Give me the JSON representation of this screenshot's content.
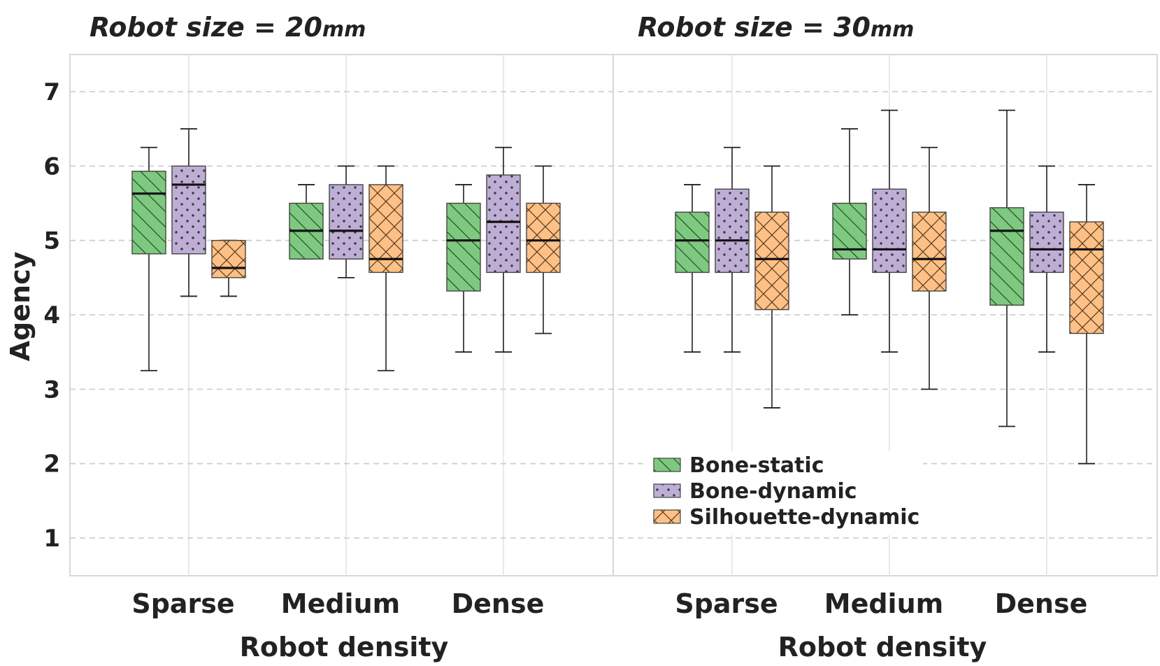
{
  "chart_data": {
    "type": "box",
    "ylabel": "Agency",
    "ylim": [
      0.5,
      7.5
    ],
    "yticks": [
      1,
      2,
      3,
      4,
      5,
      6,
      7
    ],
    "grid": "horizontal dashed",
    "legend_position": "bottom-center",
    "series": [
      {
        "name": "Bone-static",
        "color": "#7dc97f",
        "hatch": "diagonal"
      },
      {
        "name": "Bone-dynamic",
        "color": "#beaed4",
        "hatch": "dots"
      },
      {
        "name": "Silhouette-dynamic",
        "color": "#fdc086",
        "hatch": "crosshatch"
      }
    ],
    "panels": [
      {
        "title_main": "Robot size = 20",
        "title_unit": "mm",
        "xlabel": "Robot density",
        "categories": [
          "Sparse",
          "Medium",
          "Dense"
        ],
        "boxes": [
          [
            {
              "whislo": 3.25,
              "q1": 4.82,
              "med": 5.63,
              "q3": 5.93,
              "whishi": 6.25
            },
            {
              "whislo": 4.25,
              "q1": 4.82,
              "med": 5.75,
              "q3": 6.0,
              "whishi": 6.5
            },
            {
              "whislo": 4.25,
              "q1": 4.5,
              "med": 4.63,
              "q3": 5.0,
              "whishi": 5.0
            }
          ],
          [
            {
              "whislo": 4.75,
              "q1": 4.75,
              "med": 5.13,
              "q3": 5.5,
              "whishi": 5.75
            },
            {
              "whislo": 4.5,
              "q1": 4.75,
              "med": 5.13,
              "q3": 5.75,
              "whishi": 6.0
            },
            {
              "whislo": 3.25,
              "q1": 4.57,
              "med": 4.75,
              "q3": 5.75,
              "whishi": 6.0
            }
          ],
          [
            {
              "whislo": 3.5,
              "q1": 4.32,
              "med": 5.0,
              "q3": 5.5,
              "whishi": 5.75
            },
            {
              "whislo": 3.5,
              "q1": 4.57,
              "med": 5.25,
              "q3": 5.88,
              "whishi": 6.25
            },
            {
              "whislo": 3.75,
              "q1": 4.57,
              "med": 5.0,
              "q3": 5.5,
              "whishi": 6.0
            }
          ]
        ]
      },
      {
        "title_main": "Robot size = 30",
        "title_unit": "mm",
        "xlabel": "Robot density",
        "categories": [
          "Sparse",
          "Medium",
          "Dense"
        ],
        "boxes": [
          [
            {
              "whislo": 3.5,
              "q1": 4.57,
              "med": 5.0,
              "q3": 5.38,
              "whishi": 5.75
            },
            {
              "whislo": 3.5,
              "q1": 4.57,
              "med": 5.0,
              "q3": 5.69,
              "whishi": 6.25
            },
            {
              "whislo": 2.75,
              "q1": 4.07,
              "med": 4.75,
              "q3": 5.38,
              "whishi": 6.0
            }
          ],
          [
            {
              "whislo": 4.0,
              "q1": 4.75,
              "med": 4.88,
              "q3": 5.5,
              "whishi": 6.5
            },
            {
              "whislo": 3.5,
              "q1": 4.57,
              "med": 4.88,
              "q3": 5.69,
              "whishi": 6.75
            },
            {
              "whislo": 3.0,
              "q1": 4.32,
              "med": 4.75,
              "q3": 5.38,
              "whishi": 6.25
            }
          ],
          [
            {
              "whislo": 2.5,
              "q1": 4.13,
              "med": 5.13,
              "q3": 5.44,
              "whishi": 6.75
            },
            {
              "whislo": 3.5,
              "q1": 4.57,
              "med": 4.88,
              "q3": 5.38,
              "whishi": 6.0
            },
            {
              "whislo": 2.0,
              "q1": 3.75,
              "med": 4.88,
              "q3": 5.25,
              "whishi": 5.75
            }
          ]
        ]
      }
    ]
  }
}
